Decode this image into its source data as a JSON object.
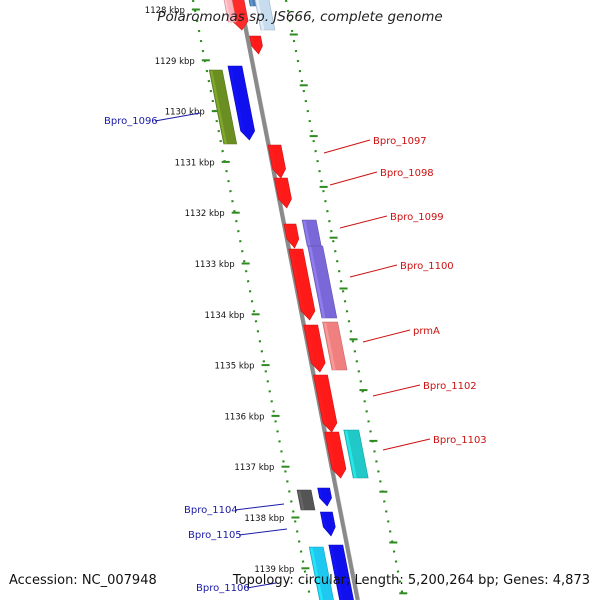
{
  "title": "Polaromonas sp. JS666, complete genome",
  "footer": {
    "accession": "Accession: NC_007948",
    "summary": "Topology: circular; Length: 5,200,264 bp; Genes: 4,873"
  },
  "colors": {
    "backbone": "#8a8a8a",
    "ticks": "#2e8b1f",
    "tick_label": "#111111",
    "label_blue": "#1a1aa6",
    "label_red": "#cc1111"
  },
  "kbp_labels": [
    "1128 kbp",
    "1129 kbp",
    "1130 kbp",
    "1131 kbp",
    "1132 kbp",
    "1133 kbp",
    "1134 kbp",
    "1135 kbp",
    "1136 kbp",
    "1137 kbp",
    "1138 kbp",
    "1139 kbp"
  ],
  "gene_labels_left": [
    "Bpro_1096",
    "Bpro_1104",
    "Bpro_1105",
    "Bpro_1106"
  ],
  "gene_labels_right": [
    "Bpro_1097",
    "Bpro_1098",
    "Bpro_1099",
    "Bpro_1100",
    "prmA",
    "Bpro_1102",
    "Bpro_1103"
  ],
  "features": [
    {
      "name": "top-red-partial",
      "color": "#ff2a2a"
    },
    {
      "name": "top-pink-partial",
      "color": "#ffb0b8"
    },
    {
      "name": "top-steelblue-partial",
      "color": "#4f7fb0"
    },
    {
      "name": "top-lightblue-partial",
      "color": "#c8dcf0"
    },
    {
      "name": "small-red-1128",
      "color": "#ff1a1a"
    },
    {
      "name": "Bpro_1096-gene",
      "color": "#6b8e23"
    },
    {
      "name": "blue-gene-1129",
      "color": "#1010ee"
    },
    {
      "name": "Bpro_1097-gene",
      "color": "#ff1a1a"
    },
    {
      "name": "Bpro_1098-gene",
      "color": "#ff1a1a"
    },
    {
      "name": "Bpro_1099-gene",
      "color": "#ff1a1a"
    },
    {
      "name": "Bpro_1099b-gene",
      "color": "#7b68d8"
    },
    {
      "name": "Bpro_1100-gene",
      "color": "#ff1a1a"
    },
    {
      "name": "Bpro_1100b-gene",
      "color": "#7b68d8"
    },
    {
      "name": "prmA-gene",
      "color": "#ff1a1a"
    },
    {
      "name": "prmA-pink-gene",
      "color": "#f08080"
    },
    {
      "name": "Bpro_1102-gene",
      "color": "#ff1a1a"
    },
    {
      "name": "Bpro_1103-gene",
      "color": "#ff1a1a"
    },
    {
      "name": "Bpro_1103b-gene",
      "color": "#20c8c8"
    },
    {
      "name": "Bpro_1104-gene",
      "color": "#555555"
    },
    {
      "name": "Bpro_1104b-gene",
      "color": "#1010ee"
    },
    {
      "name": "Bpro_1105-gene",
      "color": "#1010ee"
    },
    {
      "name": "Bpro_1106-gene",
      "color": "#1ec8f0"
    },
    {
      "name": "Bpro_1106b-gene",
      "color": "#1010ee"
    }
  ]
}
